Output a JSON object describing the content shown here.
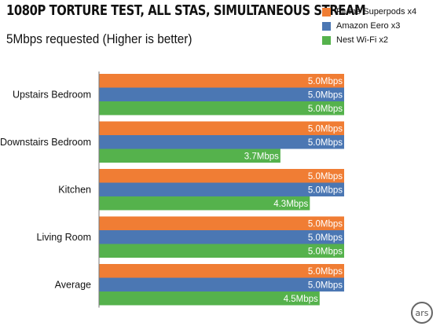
{
  "chart_data": {
    "type": "bar",
    "orientation": "horizontal",
    "title": "1080P TORTURE TEST, ALL STAS, SIMULTANEOUS STREAM",
    "subtitle": "5Mbps requested (Higher is better)",
    "categories": [
      "Upstairs Bedroom",
      "Downstairs Bedroom",
      "Kitchen",
      "Living Room",
      "Average"
    ],
    "series": [
      {
        "name": "Plume Superpods x4",
        "color": "#f07d34",
        "values": [
          5.0,
          5.0,
          5.0,
          5.0,
          5.0
        ],
        "labels": [
          "5.0Mbps",
          "5.0Mbps",
          "5.0Mbps",
          "5.0Mbps",
          "5.0Mbps"
        ]
      },
      {
        "name": "Amazon Eero x3",
        "color": "#4b77b3",
        "values": [
          5.0,
          5.0,
          5.0,
          5.0,
          5.0
        ],
        "labels": [
          "5.0Mbps",
          "5.0Mbps",
          "5.0Mbps",
          "5.0Mbps",
          "5.0Mbps"
        ]
      },
      {
        "name": "Nest Wi-Fi x2",
        "color": "#55b24c",
        "values": [
          5.0,
          3.7,
          4.3,
          5.0,
          4.5
        ],
        "labels": [
          "5.0Mbps",
          "3.7Mbps",
          "4.3Mbps",
          "5.0Mbps",
          "4.5Mbps"
        ]
      }
    ],
    "xlim": [
      0,
      5.0
    ],
    "grid": false,
    "legend": "top-right"
  },
  "logo": {
    "text": "ars"
  }
}
